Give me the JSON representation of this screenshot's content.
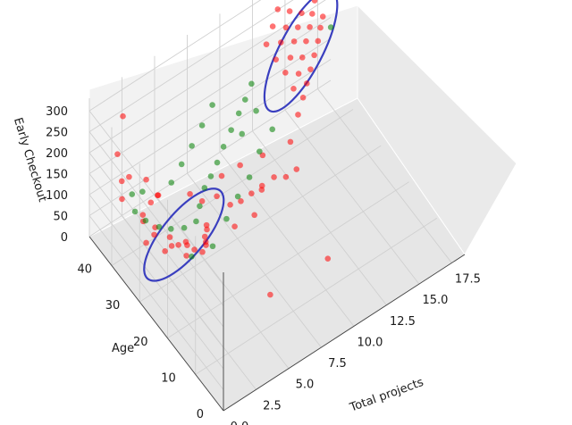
{
  "chart_data": {
    "type": "scatter",
    "projection": "3d",
    "title": "",
    "xlabel": "Total projects",
    "ylabel": "Age",
    "zlabel": "Early Checkout",
    "xlim": [
      0,
      18.5
    ],
    "ylim": [
      0,
      48
    ],
    "zlim": [
      0,
      330
    ],
    "x_ticks": [
      "0.0",
      "2.5",
      "5.0",
      "7.5",
      "10.0",
      "12.5",
      "15.0",
      "17.5"
    ],
    "y_ticks": [
      "0",
      "10",
      "20",
      "30",
      "40"
    ],
    "z_ticks": [
      "0",
      "50",
      "100",
      "150",
      "200",
      "250",
      "300"
    ],
    "grid": true,
    "pane_color": "#f2f2f2",
    "series_colors": {
      "red": "#ff0000",
      "green": "#008000"
    },
    "cluster_outline_color": "#3a3fbf",
    "series": [
      {
        "color": "#ff0000",
        "points": [
          [
            1.5,
            43,
            300
          ],
          [
            1.2,
            42,
            160
          ],
          [
            1.0,
            41,
            130
          ],
          [
            1.3,
            44,
            205
          ],
          [
            2.0,
            37,
            40
          ],
          [
            2.4,
            36,
            60
          ],
          [
            2.8,
            34,
            30
          ],
          [
            3.1,
            33,
            45
          ],
          [
            3.4,
            32,
            50
          ],
          [
            3.8,
            31,
            25
          ],
          [
            4.2,
            30,
            40
          ],
          [
            4.6,
            29,
            35
          ],
          [
            5.0,
            30,
            55
          ],
          [
            5.3,
            31,
            20
          ],
          [
            2.2,
            39,
            70
          ],
          [
            2.9,
            38,
            50
          ],
          [
            3.6,
            36,
            30
          ],
          [
            4.4,
            34,
            20
          ],
          [
            5.8,
            33,
            30
          ],
          [
            6.2,
            35,
            15
          ],
          [
            3.0,
            40,
            90
          ],
          [
            3.3,
            39,
            110
          ],
          [
            2.6,
            41,
            60
          ],
          [
            6.5,
            38,
            40
          ],
          [
            7.2,
            36,
            55
          ],
          [
            7.8,
            34,
            40
          ],
          [
            8.4,
            33,
            45
          ],
          [
            9.0,
            32,
            60
          ],
          [
            9.6,
            31,
            75
          ],
          [
            10.3,
            30,
            90
          ],
          [
            11.0,
            29,
            85
          ],
          [
            11.6,
            28,
            100
          ],
          [
            8.0,
            38,
            70
          ],
          [
            9.2,
            37,
            80
          ],
          [
            10.5,
            35,
            95
          ],
          [
            12.2,
            33,
            110
          ],
          [
            13.0,
            34,
            150
          ],
          [
            13.6,
            35,
            170
          ],
          [
            14.1,
            36,
            185
          ],
          [
            14.6,
            37,
            200
          ],
          [
            15.1,
            38,
            215
          ],
          [
            15.6,
            39,
            230
          ],
          [
            16.0,
            40,
            245
          ],
          [
            16.4,
            41,
            255
          ],
          [
            13.3,
            37,
            180
          ],
          [
            13.9,
            38,
            195
          ],
          [
            14.4,
            39,
            215
          ],
          [
            14.9,
            40,
            235
          ],
          [
            15.4,
            41,
            250
          ],
          [
            15.8,
            42,
            265
          ],
          [
            16.2,
            43,
            280
          ],
          [
            13.1,
            39,
            205
          ],
          [
            13.7,
            40,
            220
          ],
          [
            14.2,
            41,
            240
          ],
          [
            14.7,
            42,
            255
          ],
          [
            15.2,
            43,
            270
          ],
          [
            12.8,
            41,
            225
          ],
          [
            13.4,
            42,
            245
          ],
          [
            14.0,
            43,
            260
          ],
          [
            14.5,
            44,
            280
          ],
          [
            12.5,
            43,
            250
          ],
          [
            13.2,
            44,
            270
          ],
          [
            13.8,
            45,
            290
          ],
          [
            15.0,
            45,
            300
          ],
          [
            11.0,
            14,
            20
          ],
          [
            6.8,
            15,
            10
          ],
          [
            4.5,
            34,
            10
          ],
          [
            5.5,
            32,
            15
          ],
          [
            7.5,
            31,
            20
          ],
          [
            8.8,
            30,
            30
          ],
          [
            10.0,
            33,
            40
          ],
          [
            6.0,
            40,
            50
          ],
          [
            4.0,
            42,
            70
          ],
          [
            3.5,
            44,
            100
          ],
          [
            2.4,
            45,
            120
          ]
        ]
      },
      {
        "color": "#008000",
        "points": [
          [
            2.0,
            41,
            80
          ],
          [
            2.6,
            40,
            55
          ],
          [
            3.2,
            38,
            45
          ],
          [
            3.9,
            37,
            35
          ],
          [
            4.7,
            36,
            30
          ],
          [
            5.4,
            35,
            40
          ],
          [
            6.1,
            37,
            45
          ],
          [
            6.9,
            39,
            55
          ],
          [
            7.6,
            40,
            60
          ],
          [
            8.3,
            41,
            70
          ],
          [
            9.0,
            42,
            85
          ],
          [
            9.8,
            43,
            100
          ],
          [
            10.6,
            44,
            115
          ],
          [
            11.3,
            45,
            125
          ],
          [
            12.0,
            46,
            140
          ],
          [
            5.0,
            42,
            80
          ],
          [
            6.0,
            43,
            95
          ],
          [
            7.0,
            44,
            110
          ],
          [
            8.0,
            45,
            130
          ],
          [
            9.0,
            46,
            150
          ],
          [
            7.3,
            33,
            25
          ],
          [
            8.6,
            35,
            35
          ],
          [
            9.7,
            36,
            50
          ],
          [
            10.9,
            38,
            70
          ],
          [
            12.1,
            39,
            90
          ],
          [
            4.2,
            31,
            15
          ],
          [
            5.6,
            30,
            20
          ],
          [
            10.2,
            41,
            100
          ],
          [
            11.5,
            42,
            120
          ],
          [
            16.8,
            40,
            230
          ],
          [
            3.0,
            43,
            90
          ],
          [
            2.2,
            43,
            100
          ]
        ]
      }
    ],
    "annotations": [
      {
        "shape": "freehand-loop",
        "label": "",
        "around_x": [
          2.0,
          6.5
        ],
        "around_y": [
          28,
          40
        ],
        "around_z": [
          0,
          80
        ]
      },
      {
        "shape": "freehand-loop",
        "label": "",
        "around_x": [
          12.5,
          16.5
        ],
        "around_y": [
          34,
          46
        ],
        "around_z": [
          140,
          300
        ]
      }
    ]
  }
}
